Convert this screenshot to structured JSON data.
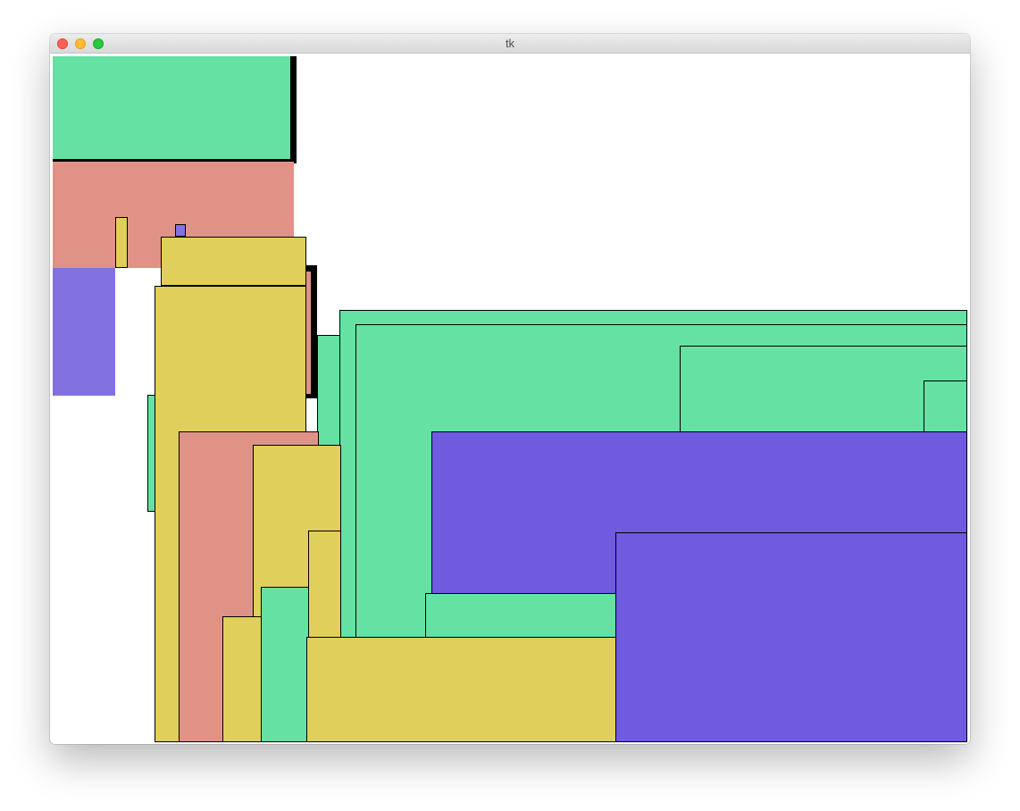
{
  "window": {
    "title": "tk"
  },
  "colors": {
    "green": "#65e1a4",
    "salmon": "#e19286",
    "yellow": "#e0cf5a",
    "purple": "#6f5ae0",
    "lilac": "#8272e0",
    "outline": "#000000"
  }
}
